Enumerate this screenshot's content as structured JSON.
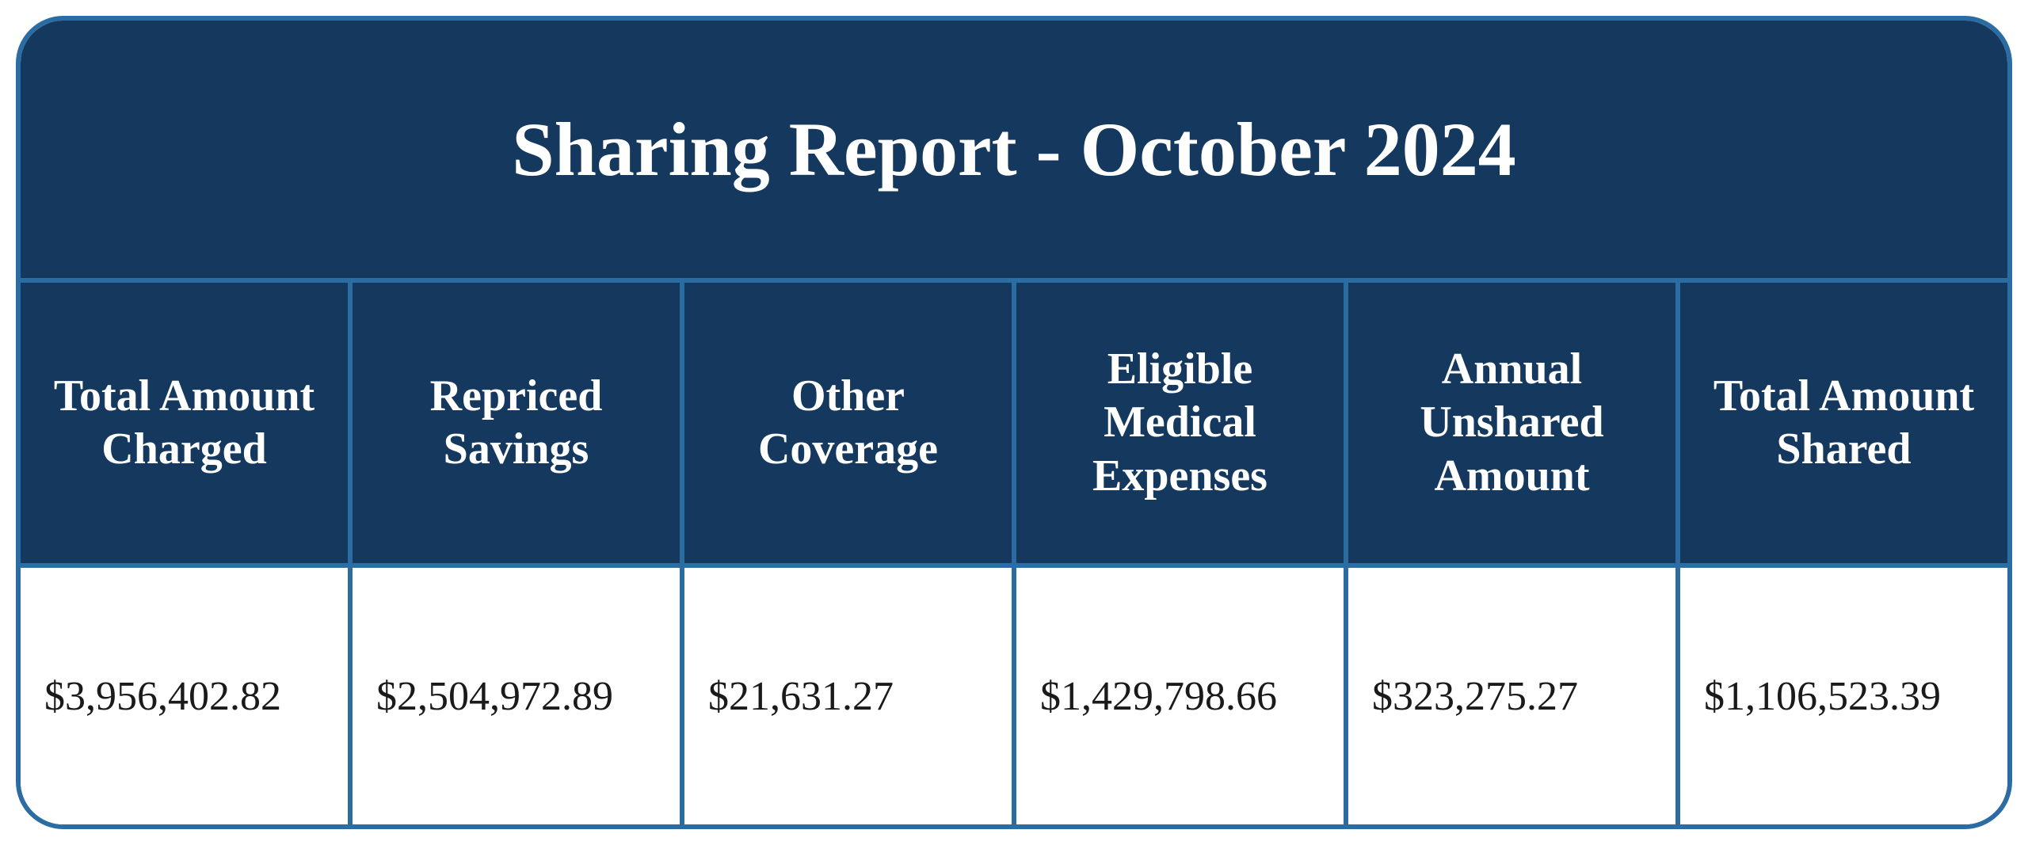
{
  "report": {
    "title": "Sharing Report - October 2024",
    "type": "table",
    "background_color": "#ffffff",
    "border_color": "#2b6ca3",
    "border_width": 6,
    "border_radius": 60,
    "header_background": "#14385e",
    "header_text_color": "#ffffff",
    "value_background": "#ffffff",
    "value_text_color": "#1a1a1a",
    "title_fontsize": 96,
    "header_fontsize": 56,
    "value_fontsize": 52,
    "columns": [
      {
        "label": "Total Amount Charged",
        "value": "$3,956,402.82"
      },
      {
        "label": "Repriced Savings",
        "value": "$2,504,972.89"
      },
      {
        "label": "Other Coverage",
        "value": "$21,631.27"
      },
      {
        "label": "Eligible Medical Expenses",
        "value": "$1,429,798.66"
      },
      {
        "label": "Annual Unshared Amount",
        "value": "$323,275.27"
      },
      {
        "label": "Total Amount Shared",
        "value": "$1,106,523.39"
      }
    ]
  }
}
